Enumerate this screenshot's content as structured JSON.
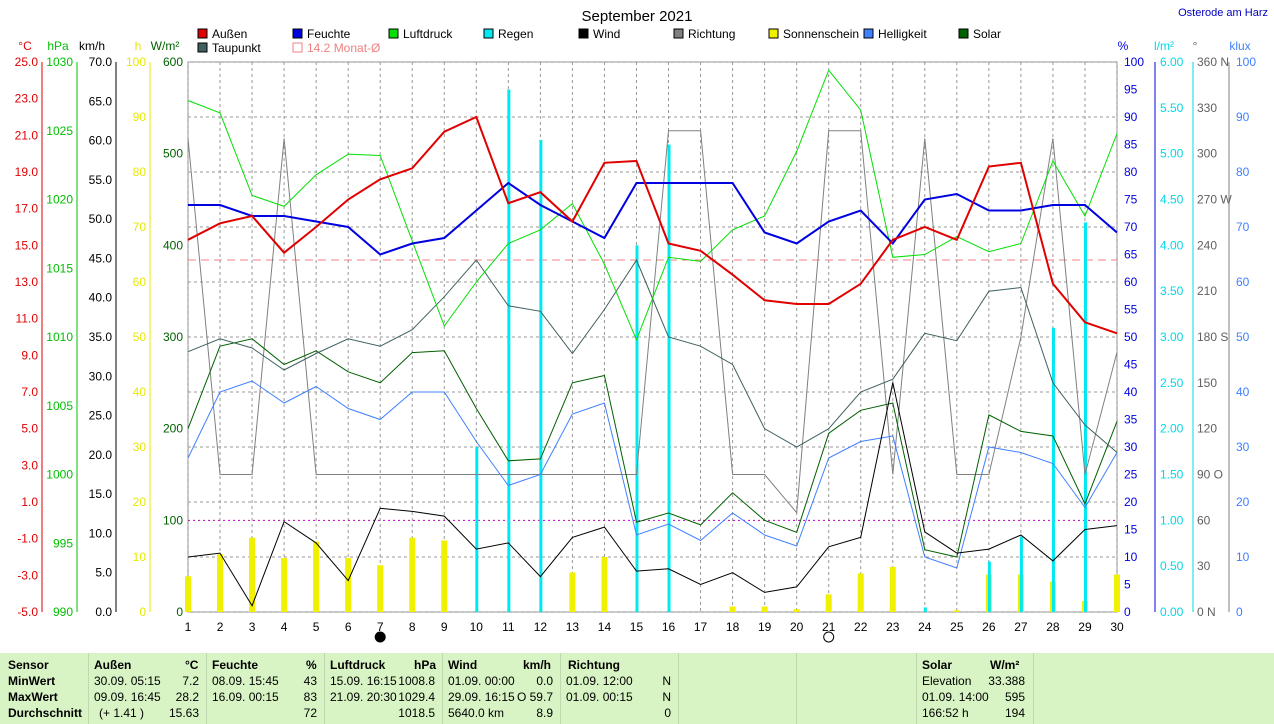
{
  "title": "September 2021",
  "location": "Osterode am Harz",
  "legend": [
    {
      "label": "Außen",
      "color": "#e00000"
    },
    {
      "label": "Feuchte",
      "color": "#0000e0"
    },
    {
      "label": "Luftdruck",
      "color": "#00e000"
    },
    {
      "label": "Regen",
      "color": "#00e8f0"
    },
    {
      "label": "Wind",
      "color": "#000000"
    },
    {
      "label": "Richtung",
      "color": "#808080"
    },
    {
      "label": "Sonnenschein",
      "color": "#f0f000"
    },
    {
      "label": "Helligkeit",
      "color": "#4080ff"
    },
    {
      "label": "Solar",
      "color": "#006000"
    },
    {
      "label": "Taupunkt",
      "color": "#406060"
    },
    {
      "label": "14.2 Monat-Ø",
      "color": "#f08080"
    }
  ],
  "axes": {
    "temp": {
      "unit": "°C",
      "color": "#e00000",
      "ticks": [
        "25.0",
        "23.0",
        "21.0",
        "19.0",
        "17.0",
        "15.0",
        "13.0",
        "11.0",
        "9.0",
        "7.0",
        "5.0",
        "3.0",
        "1.0",
        "-1.0",
        "-3.0",
        "-5.0"
      ]
    },
    "pressure": {
      "unit": "hPa",
      "color": "#00c000",
      "ticks": [
        "1030",
        "1025",
        "1020",
        "1015",
        "1010",
        "1005",
        "1000",
        "995",
        "990"
      ]
    },
    "wind": {
      "unit": "km/h",
      "color": "#000000",
      "ticks": [
        "70.0",
        "65.0",
        "60.0",
        "55.0",
        "50.0",
        "45.0",
        "40.0",
        "35.0",
        "30.0",
        "25.0",
        "20.0",
        "15.0",
        "10.0",
        "5.0",
        "0.0"
      ]
    },
    "sun": {
      "unit": "h",
      "color": "#e8e800",
      "ticks": [
        "100",
        "90",
        "80",
        "70",
        "60",
        "50",
        "40",
        "30",
        "20",
        "10",
        "0"
      ]
    },
    "solar": {
      "unit": "W/m²",
      "color": "#006000",
      "ticks": [
        "600",
        "500",
        "400",
        "300",
        "200",
        "100",
        "0"
      ]
    },
    "humidity": {
      "unit": "%",
      "color": "#0000e0",
      "ticks": [
        "100",
        "95",
        "90",
        "85",
        "80",
        "75",
        "70",
        "65",
        "60",
        "55",
        "50",
        "45",
        "40",
        "35",
        "30",
        "25",
        "20",
        "15",
        "10",
        "5",
        "0"
      ]
    },
    "rain": {
      "unit": "l/m²",
      "color": "#00d8e8",
      "ticks": [
        "6.00",
        "5.50",
        "5.00",
        "4.50",
        "4.00",
        "3.50",
        "3.00",
        "2.50",
        "2.00",
        "1.50",
        "1.00",
        "0.50",
        "0.00"
      ]
    },
    "direction": {
      "unit": "°",
      "color": "#606060",
      "ticks": [
        "360 N",
        "330",
        "300",
        "270 W",
        "240",
        "210",
        "180 S",
        "150",
        "120",
        "90 O",
        "60",
        "30",
        "0 N"
      ]
    },
    "lux": {
      "unit": "klux",
      "color": "#4080ff",
      "ticks": [
        "100",
        "90",
        "80",
        "70",
        "60",
        "50",
        "40",
        "30",
        "20",
        "10",
        "0"
      ]
    }
  },
  "chart_data": {
    "type": "line",
    "x": [
      1,
      2,
      3,
      4,
      5,
      6,
      7,
      8,
      9,
      10,
      11,
      12,
      13,
      14,
      15,
      16,
      17,
      18,
      19,
      20,
      21,
      22,
      23,
      24,
      25,
      26,
      27,
      28,
      29,
      30
    ],
    "monthly_avg_temp": 14.2,
    "series": [
      {
        "name": "Außen",
        "axis": "temp",
        "values": [
          15.3,
          16.2,
          16.6,
          14.6,
          16.0,
          17.5,
          18.6,
          19.2,
          21.2,
          22.0,
          17.3,
          17.9,
          16.3,
          19.5,
          19.6,
          15.1,
          14.7,
          13.4,
          12.0,
          11.8,
          11.8,
          12.9,
          15.3,
          16.0,
          15.3,
          19.3,
          19.5,
          12.9,
          10.8,
          10.2
        ]
      },
      {
        "name": "Feuchte",
        "axis": "humidity",
        "values": [
          74,
          74,
          72,
          72,
          71,
          70,
          65,
          67,
          68,
          73,
          78,
          74,
          71,
          68,
          78,
          78,
          78,
          78,
          69,
          67,
          71,
          73,
          67,
          75,
          76,
          73,
          73,
          74,
          74,
          69
        ]
      },
      {
        "name": "Luftdruck",
        "axis": "pressure",
        "values": [
          1027.2,
          1026.3,
          1020.3,
          1019.5,
          1021.8,
          1023.3,
          1023.2,
          1017.0,
          1010.8,
          1014.0,
          1016.8,
          1017.8,
          1019.7,
          1015.3,
          1009.8,
          1015.8,
          1015.5,
          1017.8,
          1018.8,
          1023.5,
          1029.4,
          1026.5,
          1015.8,
          1016.0,
          1017.3,
          1016.2,
          1016.8,
          1022.8,
          1018.8,
          1024.8
        ]
      },
      {
        "name": "Taupunkt",
        "axis": "temp",
        "values": [
          9.2,
          9.9,
          9.4,
          8.2,
          9.1,
          9.9,
          9.5,
          10.4,
          12.2,
          14.2,
          11.7,
          11.4,
          9.1,
          11.5,
          14.2,
          10.0,
          9.5,
          8.5,
          5.0,
          4.0,
          5.0,
          7.0,
          7.7,
          10.2,
          9.8,
          12.5,
          12.7,
          7.5,
          5.2,
          3.7
        ]
      },
      {
        "name": "Wind",
        "axis": "wind",
        "values": [
          7.0,
          7.5,
          0.8,
          11.5,
          8.8,
          4.0,
          13.2,
          12.8,
          12.2,
          8.0,
          8.8,
          4.5,
          9.5,
          10.8,
          5.2,
          5.5,
          3.5,
          5.0,
          2.5,
          3.2,
          8.3,
          9.5,
          29.2,
          10.2,
          7.5,
          8.0,
          9.8,
          6.5,
          10.5,
          11.0
        ]
      },
      {
        "name": "Richtung",
        "axis": "direction",
        "values": [
          310,
          90,
          90,
          310,
          90,
          90,
          90,
          90,
          90,
          90,
          90,
          90,
          90,
          90,
          90,
          315,
          315,
          90,
          90,
          65,
          315,
          315,
          90,
          310,
          90,
          90,
          180,
          310,
          90,
          170
        ]
      },
      {
        "name": "Solar",
        "axis": "solar",
        "values": [
          200,
          290,
          298,
          270,
          285,
          262,
          250,
          283,
          285,
          222,
          165,
          167,
          250,
          258,
          98,
          108,
          95,
          130,
          100,
          87,
          195,
          220,
          228,
          68,
          60,
          215,
          197,
          192,
          118,
          208
        ]
      },
      {
        "name": "Helligkeit",
        "axis": "lux",
        "values": [
          28,
          40,
          42,
          38,
          41,
          37,
          35,
          40,
          40,
          31,
          23,
          25,
          36,
          38,
          14,
          16,
          13,
          18,
          14,
          12,
          28,
          31,
          32,
          10,
          8,
          30,
          29,
          27,
          19,
          29
        ]
      }
    ],
    "bars": [
      {
        "name": "Sonnenschein",
        "axis": "sun",
        "values": [
          6.5,
          10.5,
          13.5,
          9.8,
          12.8,
          9.8,
          8.5,
          13.5,
          13.0,
          0,
          0,
          0,
          7.2,
          10.0,
          0,
          0,
          0,
          1.0,
          1.0,
          0.5,
          3.2,
          7.0,
          8.2,
          0,
          0.3,
          6.8,
          6.8,
          5.5,
          2.0,
          6.8
        ]
      },
      {
        "name": "Regen",
        "axis": "rain",
        "values": [
          0,
          0,
          0,
          0,
          0,
          0,
          0,
          0,
          0,
          1.8,
          5.7,
          5.15,
          0,
          0,
          4.0,
          5.1,
          0,
          0,
          0,
          0,
          0,
          0,
          0,
          0.05,
          0,
          0.55,
          0.82,
          3.1,
          4.25,
          0
        ]
      }
    ]
  },
  "stats": {
    "sensor": {
      "title": "Sensor",
      "rows": [
        "MinWert",
        "MaxWert",
        "Durchschnitt"
      ]
    },
    "aussen": {
      "title": "Außen",
      "unit": "°C",
      "dates": [
        "30.09.  05:15",
        "09.09.  16:45",
        "(+ 1.41 )"
      ],
      "values": [
        "7.2",
        "28.2",
        "15.63"
      ]
    },
    "feuchte": {
      "title": "Feuchte",
      "unit": "%",
      "dates": [
        "08.09.  15:45",
        "16.09.  00:15",
        ""
      ],
      "values": [
        "43",
        "83",
        "72"
      ]
    },
    "luftdruck": {
      "title": "Luftdruck",
      "unit": "hPa",
      "dates": [
        "15.09.  16:15",
        "21.09.  20:30",
        ""
      ],
      "values": [
        "1008.8",
        "1029.4",
        "1018.5"
      ]
    },
    "wind": {
      "title": "Wind",
      "unit": "km/h",
      "dates": [
        "01.09.  00:00",
        "29.09.  16:15",
        "5640.0 km"
      ],
      "values": [
        "0.0",
        "O 59.7",
        "8.9"
      ]
    },
    "richtung": {
      "title": "Richtung",
      "dates": [
        "01.09.  12:00",
        "01.09.  00:15",
        ""
      ],
      "values": [
        "N",
        "N",
        "0"
      ]
    },
    "solar": {
      "title": "Solar",
      "unit": "W/m²",
      "labels": [
        "Elevation",
        "01.09.  14:00",
        "166:52 h"
      ],
      "values": [
        "33.388",
        "595",
        "194"
      ]
    }
  }
}
